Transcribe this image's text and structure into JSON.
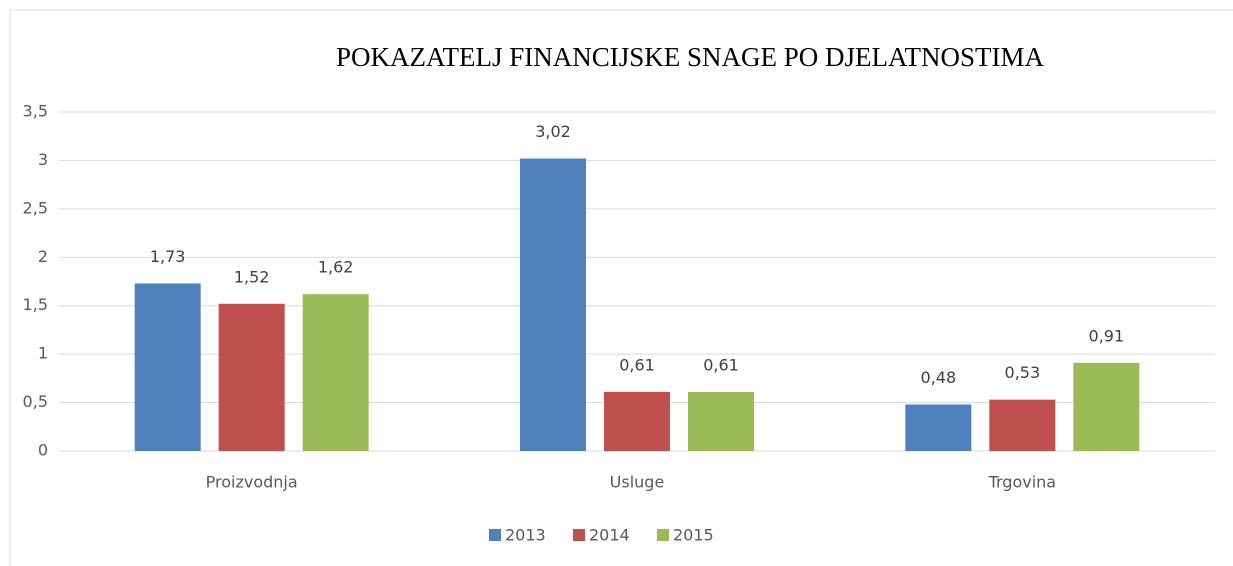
{
  "chart_data": {
    "type": "bar",
    "title": "POKAZATELJ FINANCIJSKE SNAGE PO DJELATNOSTIMA",
    "categories": [
      "Proizvodnja",
      "Usluge",
      "Trgovina"
    ],
    "series": [
      {
        "name": "2013",
        "color": "#4f81bd",
        "values": [
          1.73,
          3.02,
          0.48
        ],
        "value_labels": [
          "1,73",
          "3,02",
          "0,48"
        ]
      },
      {
        "name": "2014",
        "color": "#c0504d",
        "values": [
          1.52,
          0.61,
          0.53
        ],
        "value_labels": [
          "1,52",
          "0,61",
          "0,53"
        ]
      },
      {
        "name": "2015",
        "color": "#9bbb59",
        "values": [
          1.62,
          0.61,
          0.91
        ],
        "value_labels": [
          "1,62",
          "0,61",
          "0,91"
        ]
      }
    ],
    "ylim": [
      0,
      3.5
    ],
    "yticks": [
      0,
      {
        "value": 0.5,
        "label": "0,5"
      },
      1,
      {
        "value": 1.5,
        "label": "1,5"
      },
      2,
      {
        "value": 2.5,
        "label": "2,5"
      },
      3,
      {
        "value": 3.5,
        "label": "3,5"
      }
    ],
    "grid": true,
    "legend": "bottom"
  }
}
